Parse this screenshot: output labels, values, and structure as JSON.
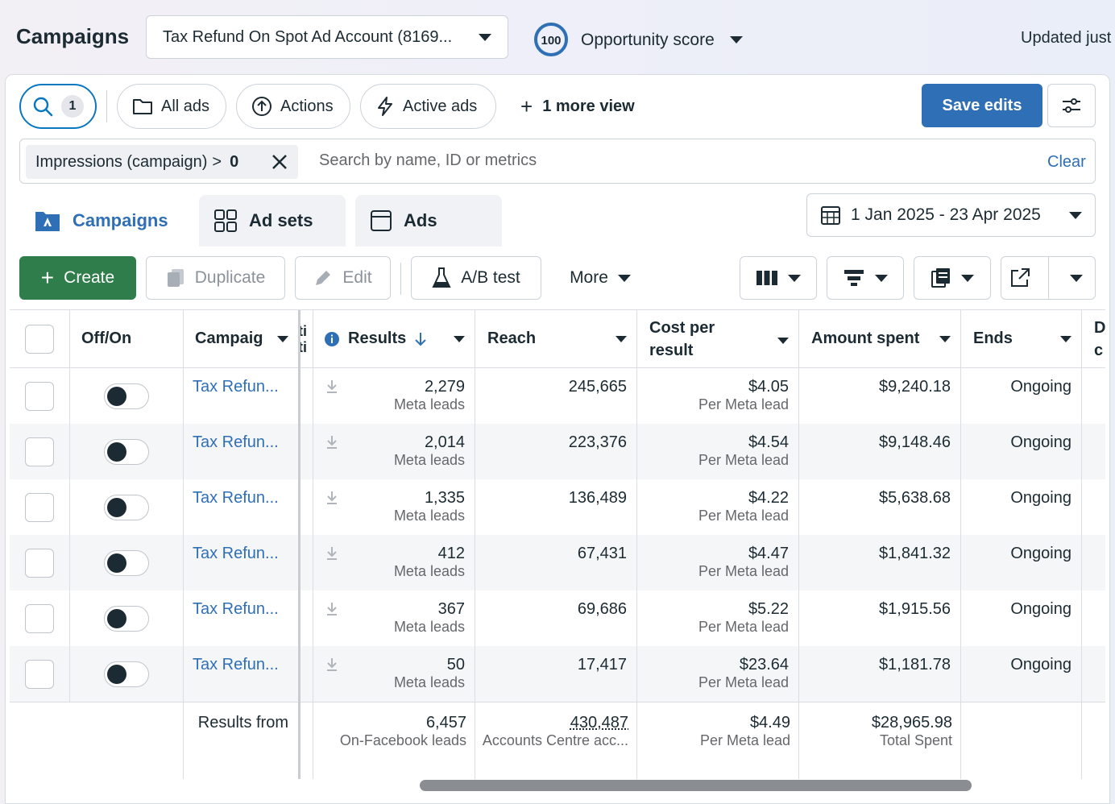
{
  "header": {
    "title": "Campaigns",
    "account": "Tax Refund On Spot Ad Account (8169...",
    "opportunity_score_value": "100",
    "opportunity_score_label": "Opportunity score",
    "updated_text": "Updated just"
  },
  "toolbar_top": {
    "search_count": "1",
    "all_ads": "All ads",
    "actions": "Actions",
    "active_ads": "Active ads",
    "more_view": "1 more view",
    "save_edits": "Save edits"
  },
  "filter": {
    "field": "Impressions (campaign)",
    "operator": ">",
    "value": "0",
    "search_placeholder": "Search by name, ID or metrics",
    "clear": "Clear"
  },
  "tabs": [
    "Campaigns",
    "Ad sets",
    "Ads"
  ],
  "date_range": "1 Jan 2025 - 23 Apr 2025",
  "actions_bar": {
    "create": "Create",
    "duplicate": "Duplicate",
    "edit": "Edit",
    "ab_test": "A/B test",
    "more": "More"
  },
  "columns": {
    "off_on": "Off/On",
    "campaign": "Campaig",
    "results": "Results",
    "reach": "Reach",
    "cost_per_result_1": "Cost per",
    "cost_per_result_2": "result",
    "amount_spent": "Amount spent",
    "ends": "Ends",
    "next_partial_1": "D",
    "next_partial_2": "c",
    "hidden_partial_1": "ti",
    "hidden_partial_2": "ti"
  },
  "rows": [
    {
      "campaign": "Tax Refun...",
      "results": "2,279",
      "results_type": "Meta leads",
      "reach": "245,665",
      "cpr": "$4.05",
      "cpr_type": "Per Meta lead",
      "spent": "$9,240.18",
      "ends": "Ongoing"
    },
    {
      "campaign": "Tax Refun...",
      "results": "2,014",
      "results_type": "Meta leads",
      "reach": "223,376",
      "cpr": "$4.54",
      "cpr_type": "Per Meta lead",
      "spent": "$9,148.46",
      "ends": "Ongoing"
    },
    {
      "campaign": "Tax Refun...",
      "results": "1,335",
      "results_type": "Meta leads",
      "reach": "136,489",
      "cpr": "$4.22",
      "cpr_type": "Per Meta lead",
      "spent": "$5,638.68",
      "ends": "Ongoing"
    },
    {
      "campaign": "Tax Refun...",
      "results": "412",
      "results_type": "Meta leads",
      "reach": "67,431",
      "cpr": "$4.47",
      "cpr_type": "Per Meta lead",
      "spent": "$1,841.32",
      "ends": "Ongoing"
    },
    {
      "campaign": "Tax Refun...",
      "results": "367",
      "results_type": "Meta leads",
      "reach": "69,686",
      "cpr": "$5.22",
      "cpr_type": "Per Meta lead",
      "spent": "$1,915.56",
      "ends": "Ongoing"
    },
    {
      "campaign": "Tax Refun...",
      "results": "50",
      "results_type": "Meta leads",
      "reach": "17,417",
      "cpr": "$23.64",
      "cpr_type": "Per Meta lead",
      "spent": "$1,181.78",
      "ends": "Ongoing"
    }
  ],
  "summary": {
    "label": "Results from",
    "results": "6,457",
    "results_type": "On-Facebook leads",
    "reach": "430,487",
    "reach_type": "Accounts Centre acc...",
    "cpr": "$4.49",
    "cpr_type": "Per Meta lead",
    "spent": "$28,965.98",
    "spent_type": "Total Spent"
  },
  "colors": {
    "brand_blue": "#2f6fb6",
    "create_green": "#2e7d4a",
    "text": "#1c2b33"
  }
}
